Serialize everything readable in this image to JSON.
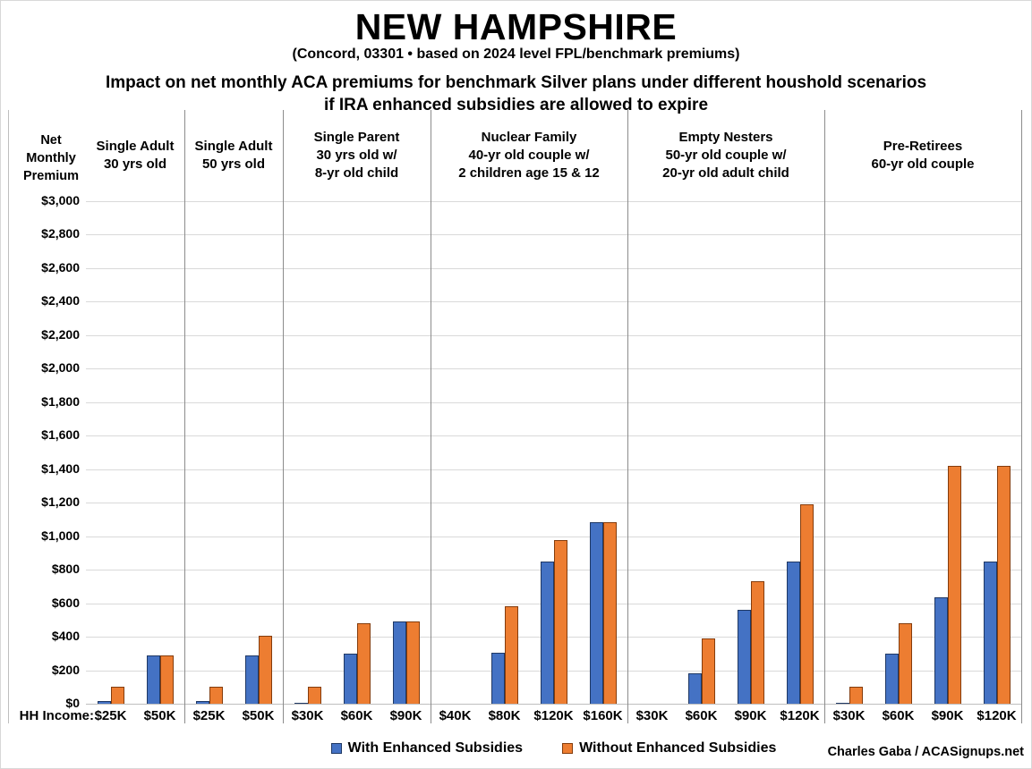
{
  "header": {
    "title": "NEW HAMPSHIRE",
    "subtitle": "(Concord, 03301 • based on 2024 level FPL/benchmark premiums)",
    "heading_line1": "Impact on net monthly ACA premiums for benchmark Silver plans under different houshold scenarios",
    "heading_line2": "if IRA enhanced subsidies are allowed to expire"
  },
  "y_axis_title": {
    "line1": "Net",
    "line2": "Monthly",
    "line3": "Premium"
  },
  "x_axis_prefix": "HH Income:",
  "legend": {
    "with_label": "With Enhanced Subsidies",
    "without_label": "Without Enhanced Subsidies"
  },
  "credit": "Charles Gaba / ACASignups.net",
  "colors": {
    "with_fill": "#4472C4",
    "with_border": "#1F3864",
    "without_fill": "#ED7D31",
    "without_border": "#843C0C",
    "gridline": "#D9D9D9",
    "axis_line": "#BFBFBF",
    "separator": "#8C8C8C",
    "edge_line": "#BFBFBF"
  },
  "chart_data": {
    "type": "bar",
    "title": "NEW HAMPSHIRE — Impact on net monthly ACA premiums for benchmark Silver plans under different houshold scenarios if IRA enhanced subsidies are allowed to expire",
    "ylabel": "Net Monthly Premium",
    "xlabel": "HH Income",
    "ylim": [
      0,
      3000
    ],
    "ytick_step": 200,
    "ytick_format": "$#,##0",
    "grid": true,
    "legend_position": "bottom",
    "series_names": [
      "With Enhanced Subsidies",
      "Without Enhanced Subsidies"
    ],
    "panels": [
      {
        "header": [
          "Single Adult",
          "30 yrs old"
        ],
        "categories": [
          "$25K",
          "$50K"
        ],
        "with": [
          15,
          290
        ],
        "without": [
          100,
          290
        ]
      },
      {
        "header": [
          "Single Adult",
          "50 yrs old"
        ],
        "categories": [
          "$25K",
          "$50K"
        ],
        "with": [
          15,
          290
        ],
        "without": [
          100,
          405
        ]
      },
      {
        "header": [
          "Single Parent",
          "30 yrs old w/",
          "8-yr old child"
        ],
        "categories": [
          "$30K",
          "$60K",
          "$90K"
        ],
        "with": [
          5,
          300,
          490
        ],
        "without": [
          100,
          480,
          490
        ]
      },
      {
        "header": [
          "Nuclear Family",
          "40-yr old couple w/",
          "2 children age 15 & 12"
        ],
        "categories": [
          "$40K",
          "$80K",
          "$120K",
          "$160K"
        ],
        "with": [
          0,
          305,
          850,
          1085
        ],
        "without": [
          0,
          580,
          975,
          1085
        ]
      },
      {
        "header": [
          "Empty Nesters",
          "50-yr old couple w/",
          "20-yr old adult child"
        ],
        "categories": [
          "$30K",
          "$60K",
          "$90K",
          "$120K"
        ],
        "with": [
          0,
          180,
          560,
          850
        ],
        "without": [
          0,
          390,
          730,
          1190
        ]
      },
      {
        "header": [
          "Pre-Retirees",
          "60-yr old couple"
        ],
        "categories": [
          "$30K",
          "$60K",
          "$90K",
          "$120K"
        ],
        "with": [
          5,
          300,
          635,
          850
        ],
        "without": [
          100,
          480,
          1420,
          1420
        ]
      }
    ]
  }
}
